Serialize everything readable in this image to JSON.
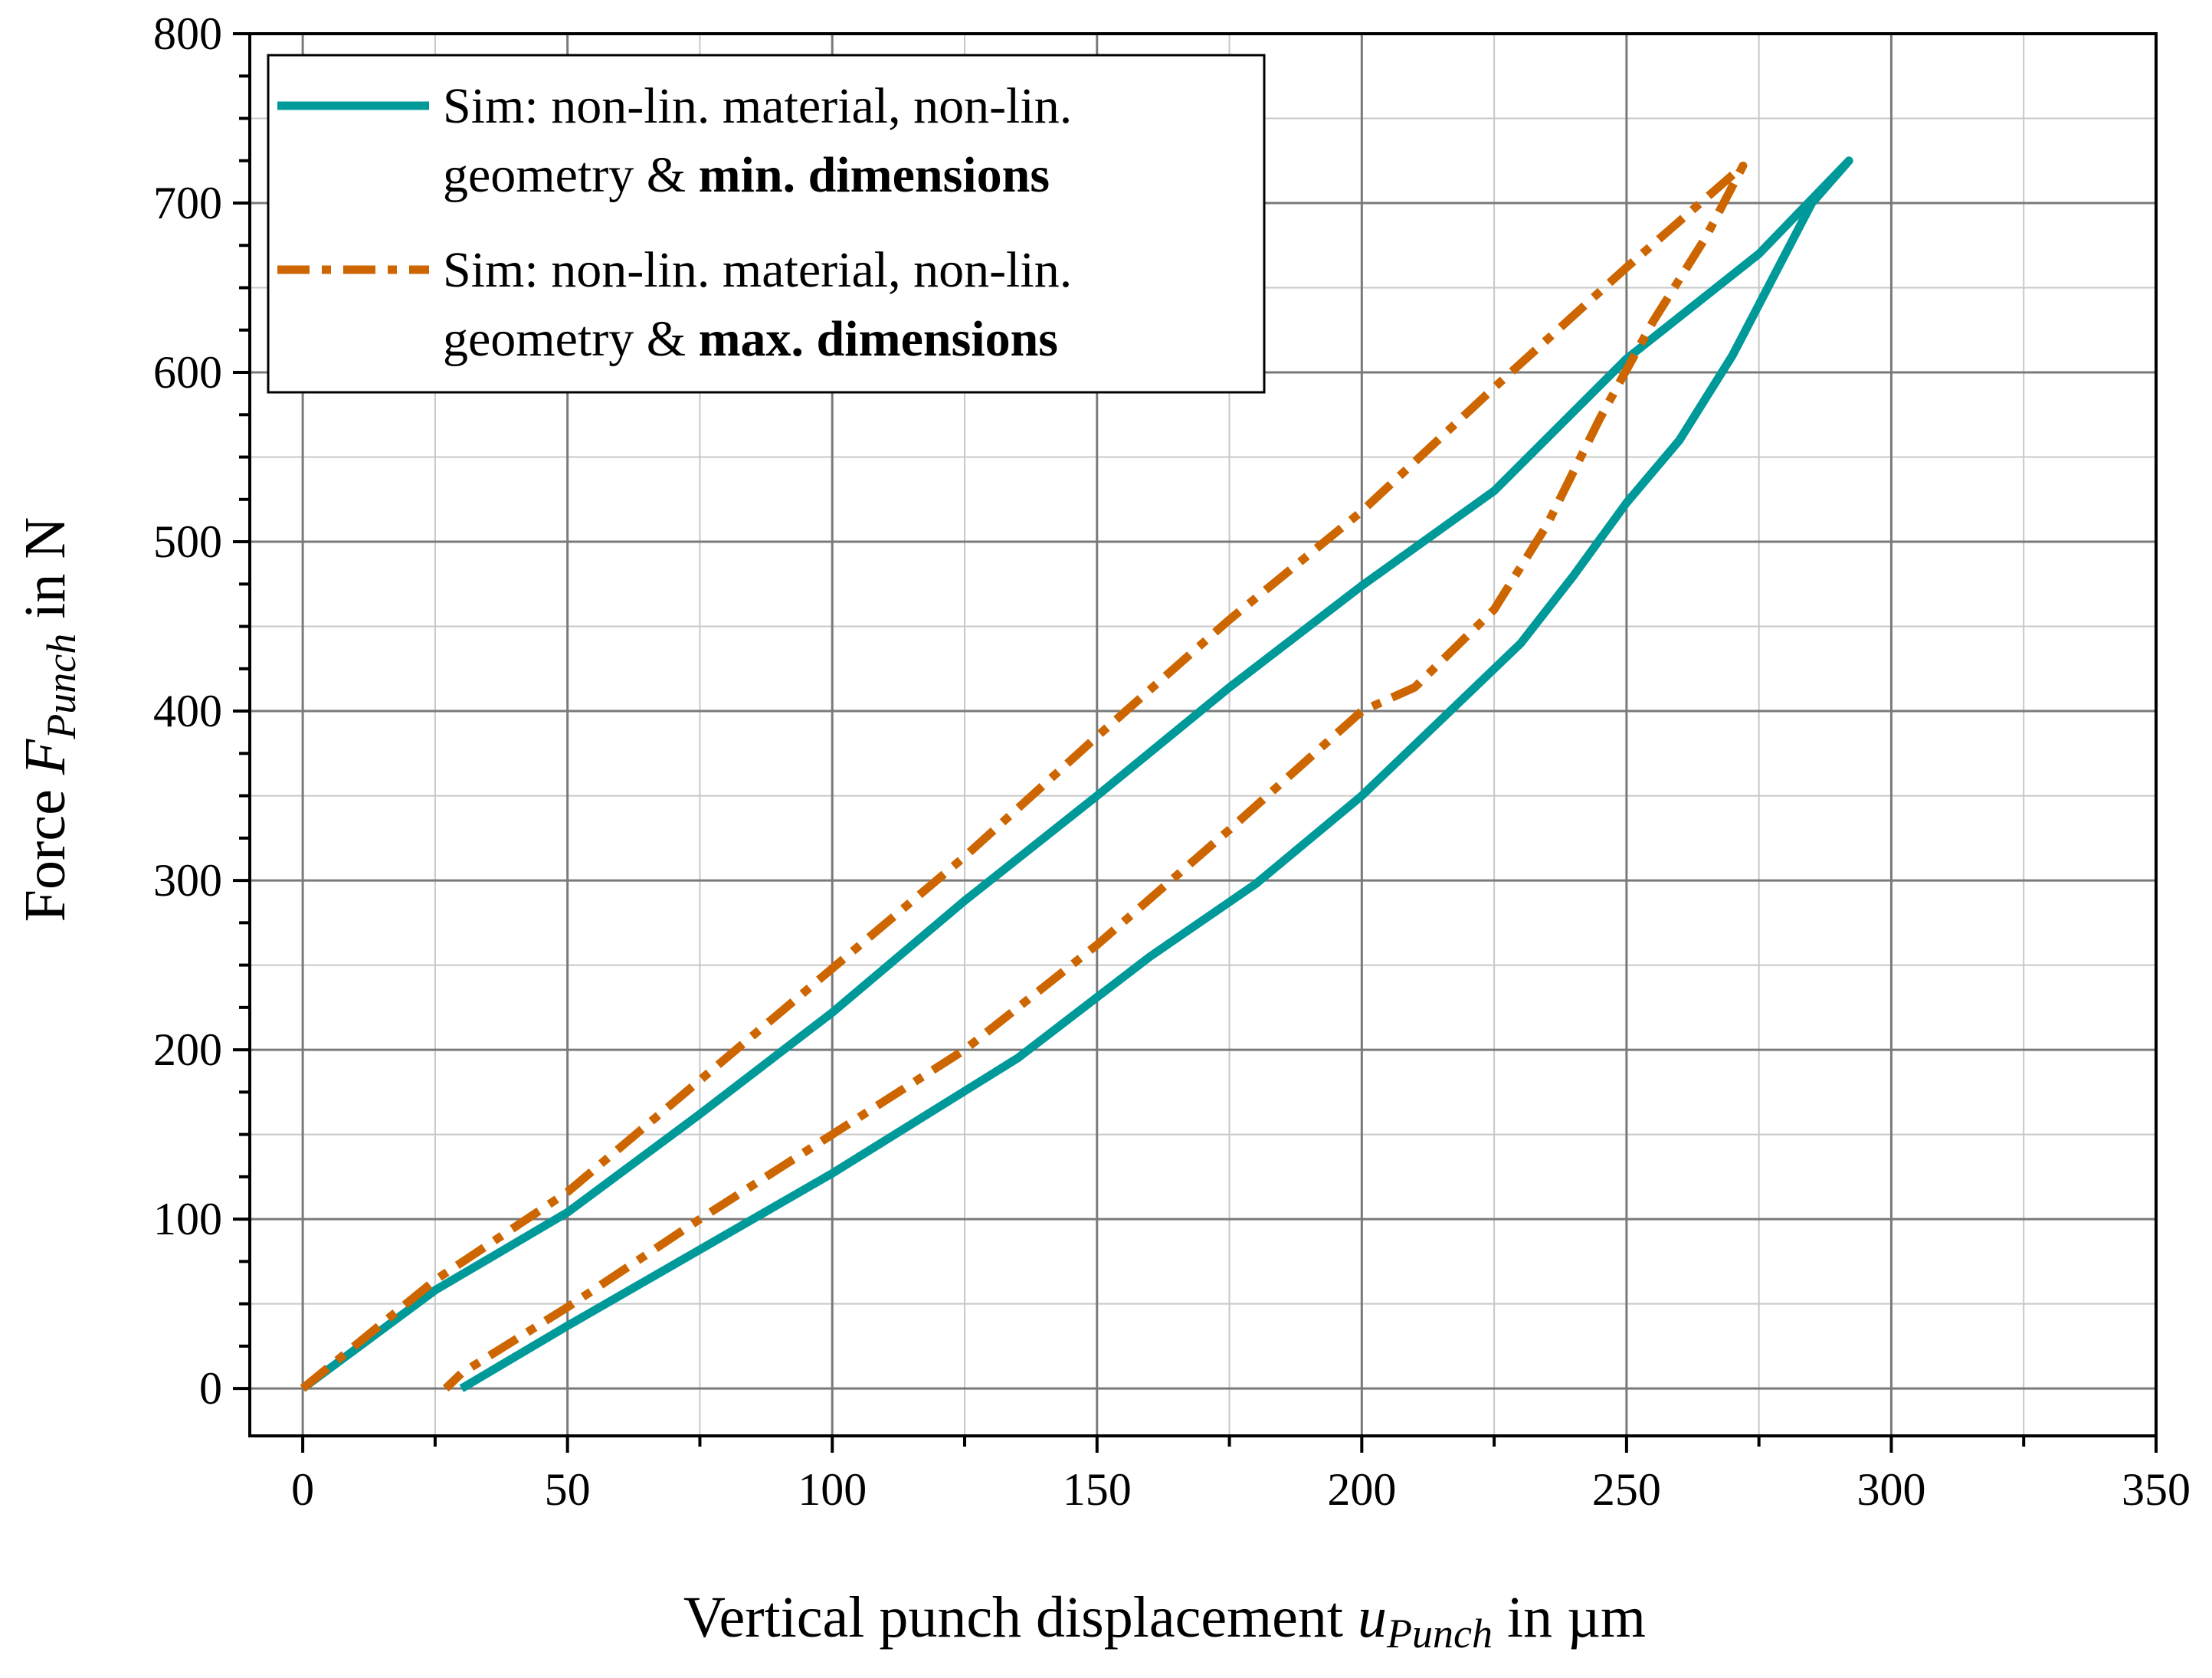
{
  "chart_data": {
    "type": "line",
    "title": "",
    "xlabel": {
      "prefix": "Vertical punch displacement ",
      "var": "u",
      "sub": "Punch",
      "suffix": "  in µm"
    },
    "ylabel": {
      "prefix": "Force ",
      "var": "F",
      "sub": "Punch",
      "suffix": "  in N"
    },
    "xlim": [
      -10,
      350
    ],
    "ylim": [
      -28,
      800
    ],
    "xticks": [
      0,
      50,
      100,
      150,
      200,
      250,
      300,
      350
    ],
    "yticks": [
      0,
      100,
      200,
      300,
      400,
      500,
      600,
      700,
      800
    ],
    "xticklabels": [
      "0",
      "50",
      "100",
      "150",
      "200",
      "250",
      "300",
      "350"
    ],
    "yticklabels": [
      "0",
      "100",
      "200",
      "300",
      "400",
      "500",
      "600",
      "700",
      "800"
    ],
    "grid": true,
    "legend_position": "top-left",
    "series": [
      {
        "name": "min",
        "legend": {
          "line1": "Sim: non-lin. material, non-lin.",
          "line2_plain": "geometry & ",
          "line2_bold": "min. dimensions"
        },
        "color": "#00999A",
        "style": "solid",
        "points": [
          [
            0,
            0
          ],
          [
            25,
            58
          ],
          [
            50,
            104
          ],
          [
            75,
            162
          ],
          [
            100,
            222
          ],
          [
            125,
            288
          ],
          [
            150,
            350
          ],
          [
            175,
            414
          ],
          [
            200,
            474
          ],
          [
            225,
            530
          ],
          [
            250,
            608
          ],
          [
            275,
            670
          ],
          [
            292,
            725
          ],
          [
            285,
            700
          ],
          [
            270,
            610
          ],
          [
            260,
            560
          ],
          [
            250,
            523
          ],
          [
            240,
            480
          ],
          [
            230,
            440
          ],
          [
            220,
            410
          ],
          [
            200,
            350
          ],
          [
            180,
            298
          ],
          [
            160,
            255
          ],
          [
            135,
            195
          ],
          [
            100,
            127
          ],
          [
            70,
            73
          ],
          [
            50,
            37
          ],
          [
            30,
            0
          ]
        ]
      },
      {
        "name": "max",
        "legend": {
          "line1": "Sim: non-lin. material, non-lin.",
          "line2_plain": "geometry & ",
          "line2_bold": "max. dimensions"
        },
        "color": "#CD6600",
        "style": "dashdot",
        "points": [
          [
            0,
            0
          ],
          [
            25,
            64
          ],
          [
            50,
            116
          ],
          [
            75,
            182
          ],
          [
            100,
            248
          ],
          [
            125,
            314
          ],
          [
            150,
            385
          ],
          [
            175,
            454
          ],
          [
            200,
            518
          ],
          [
            225,
            591
          ],
          [
            250,
            662
          ],
          [
            272,
            722
          ],
          [
            265,
            680
          ],
          [
            255,
            630
          ],
          [
            245,
            573
          ],
          [
            235,
            510
          ],
          [
            225,
            460
          ],
          [
            210,
            414
          ],
          [
            200,
            400
          ],
          [
            175,
            330
          ],
          [
            150,
            262
          ],
          [
            125,
            200
          ],
          [
            100,
            150
          ],
          [
            75,
            100
          ],
          [
            50,
            48
          ],
          [
            30,
            9
          ],
          [
            27,
            0
          ]
        ]
      }
    ]
  }
}
